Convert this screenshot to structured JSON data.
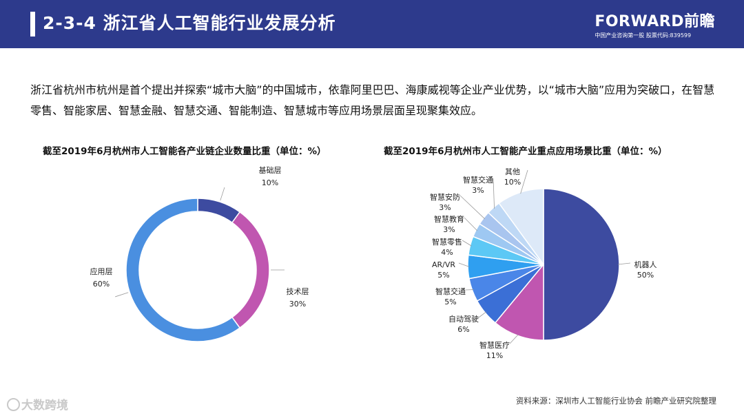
{
  "header": {
    "title": "2-3-4  浙江省人工智能行业发展分析",
    "brand_name": "FORWARD前瞻",
    "brand_sub": "中国产业咨询第一股  股票代码:839599"
  },
  "intro": "浙江省杭州市杭州是首个提出并探索“城市大脑”的中国城市，依靠阿里巴巴、海康威视等企业产业优势，以“城市大脑”应用为突破口，在智慧零售、智能家居、智慧金融、智慧交通、智能制造、智慧城市等应用场景层面呈现聚集效应。",
  "source": "资料来源：深圳市人工智能行业协会 前瞻产业研究院整理",
  "watermark": "大数跨境",
  "colors": {
    "header": "#2d3a8c"
  },
  "chart_data": [
    {
      "type": "pie",
      "style": "donut",
      "title": "截至2019年6月杭州市人工智能各产业链企业数量比重（单位：%）",
      "categories": [
        "基础层",
        "技术层",
        "应用层"
      ],
      "values": [
        10,
        30,
        60
      ],
      "labels": [
        "10%",
        "30%",
        "60%"
      ],
      "colors": [
        "#3d4ba0",
        "#c056b0",
        "#4a8fe0"
      ]
    },
    {
      "type": "pie",
      "title": "截至2019年6月杭州市人工智能产业重点应用场景比重（单位：%）",
      "categories": [
        "机器人",
        "智慧医疗",
        "自动驾驶",
        "智慧交通",
        "AR/VR",
        "智慧零售",
        "智慧教育",
        "智慧安防",
        "智慧交通",
        "其他"
      ],
      "values": [
        50,
        11,
        6,
        5,
        5,
        4,
        3,
        3,
        3,
        10
      ],
      "labels": [
        "50%",
        "11%",
        "6%",
        "5%",
        "5%",
        "4%",
        "3%",
        "3%",
        "3%",
        "10%"
      ],
      "colors": [
        "#3d4ba0",
        "#c056b0",
        "#3b6fd6",
        "#4a86e8",
        "#2f9ff0",
        "#5cc8f5",
        "#9ec8f2",
        "#a9c5ef",
        "#bed8f5",
        "#dde9f8"
      ]
    }
  ]
}
